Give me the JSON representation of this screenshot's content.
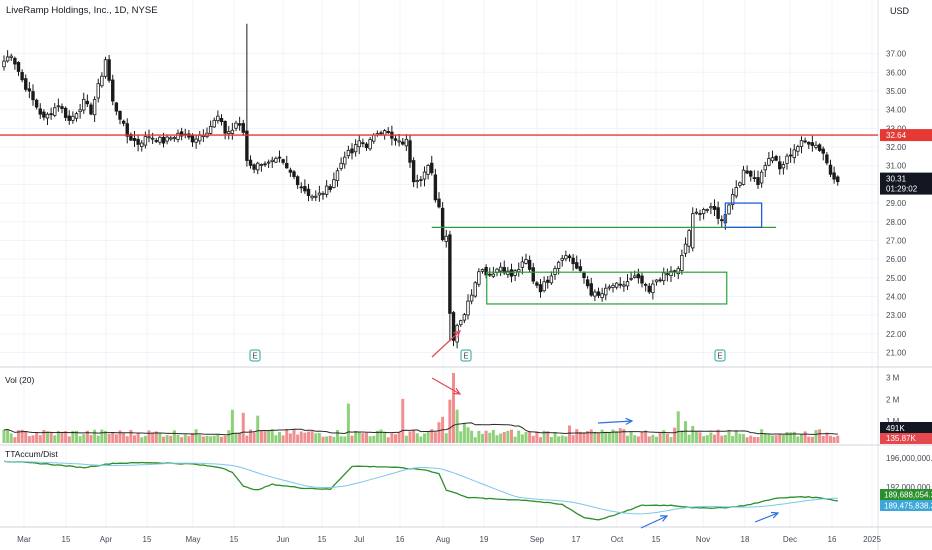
{
  "header": {
    "title": "LiveRamp Holdings, Inc., 1D, NYSE",
    "currency": "USD"
  },
  "colors": {
    "up": "#6ab04c",
    "down": "#1b1b1b",
    "vol_up": "#8fd17a",
    "vol_down": "#ef8f8f",
    "resistance": "#e53935",
    "support": "#2e9e3a",
    "range_box": "#2e9e3a",
    "flag_box": "#1e5fd6",
    "acc_line": "#2b8f2b",
    "acc_ma": "#7cc7e8",
    "earnings": "#26a69a"
  },
  "price_axis": {
    "range": [
      20.6,
      38.8
    ],
    "ticks": [
      "21.00",
      "22.00",
      "23.00",
      "24.00",
      "25.00",
      "26.00",
      "27.00",
      "28.00",
      "29.00",
      "30.00",
      "31.00",
      "32.00",
      "33.00",
      "34.00",
      "35.00",
      "36.00",
      "37.00"
    ]
  },
  "time_axis": {
    "labels": [
      "Mar",
      "15",
      "Apr",
      "15",
      "May",
      "15",
      "Jun",
      "15",
      "Jul",
      "16",
      "Aug",
      "19",
      "Sep",
      "17",
      "Oct",
      "15",
      "Nov",
      "18",
      "Dec",
      "16",
      "2025"
    ]
  },
  "markers": {
    "resistance_value": "32.64",
    "last_price": "30.31",
    "countdown": "01:29:02",
    "volume_label": "Vol (20)",
    "volume_ticks": [
      "3 M",
      "2 M",
      "1 M"
    ],
    "volume_last": "491K",
    "volume_ma": "135.87K",
    "acc_label": "TTAccum/Dist",
    "acc_tick": "196,000,000.00",
    "acc_tick2": "192,000,000.00",
    "acc_value": "189,688,054.30",
    "acc_ma_value": "189,475,838.35",
    "earnings_letter": "E"
  },
  "chart_data": {
    "type": "candlestick",
    "title": "LiveRamp Holdings, Inc., 1D, NYSE",
    "x": "trading days, 28 Feb 2024 – 27 Dec 2024",
    "ylim": [
      20.6,
      38.8
    ],
    "grid": true,
    "levels": {
      "resistance": 32.64,
      "support": 27.7,
      "last": 30.31
    },
    "range_box": {
      "low": 23.6,
      "high": 25.3
    },
    "flag_box": {
      "low": 27.7,
      "high": 29.0
    },
    "earnings_marks": [
      "May 22",
      "Aug 07",
      "Nov 06"
    ],
    "price_anchors": [
      [
        0,
        36.6
      ],
      [
        2,
        37.0
      ],
      [
        5,
        35.6
      ],
      [
        8,
        34.5
      ],
      [
        11,
        33.5
      ],
      [
        15,
        34.3
      ],
      [
        18,
        33.4
      ],
      [
        22,
        34.4
      ],
      [
        24,
        33.9
      ],
      [
        27,
        35.9
      ],
      [
        28,
        36.7
      ],
      [
        30,
        34.4
      ],
      [
        32,
        33.6
      ],
      [
        34,
        32.6
      ],
      [
        37,
        32.2
      ],
      [
        40,
        32.6
      ],
      [
        44,
        32.3
      ],
      [
        48,
        32.7
      ],
      [
        52,
        32.4
      ],
      [
        56,
        32.9
      ],
      [
        59,
        33.6
      ],
      [
        61,
        32.8
      ],
      [
        63,
        32.9
      ],
      [
        64,
        33.3
      ],
      [
        66,
        32.8
      ],
      [
        67,
        31.3
      ],
      [
        69,
        30.9
      ],
      [
        71,
        31.2
      ],
      [
        73,
        31.1
      ],
      [
        76,
        31.3
      ],
      [
        78,
        30.8
      ],
      [
        80,
        30.4
      ],
      [
        82,
        29.9
      ],
      [
        84,
        29.5
      ],
      [
        86,
        29.3
      ],
      [
        88,
        29.6
      ],
      [
        90,
        29.9
      ],
      [
        92,
        30.7
      ],
      [
        94,
        31.6
      ],
      [
        96,
        31.7
      ],
      [
        98,
        32.3
      ],
      [
        100,
        32.1
      ],
      [
        102,
        32.5
      ],
      [
        103,
        32.8
      ],
      [
        105,
        33.0
      ],
      [
        107,
        32.4
      ],
      [
        109,
        32.2
      ],
      [
        111,
        32.3
      ],
      [
        113,
        30.3
      ],
      [
        115,
        30.4
      ],
      [
        117,
        30.9
      ],
      [
        118,
        30.5
      ],
      [
        119,
        29.3
      ],
      [
        120,
        28.8
      ],
      [
        121,
        27.2
      ],
      [
        122,
        27.3
      ],
      [
        123,
        23.1
      ],
      [
        124,
        21.8
      ],
      [
        125,
        22.5
      ],
      [
        127,
        23.1
      ],
      [
        129,
        24.2
      ],
      [
        131,
        25.5
      ],
      [
        134,
        25.2
      ],
      [
        137,
        25.6
      ],
      [
        140,
        25.1
      ],
      [
        142,
        25.5
      ],
      [
        144,
        25.9
      ],
      [
        146,
        24.9
      ],
      [
        148,
        24.4
      ],
      [
        150,
        24.9
      ],
      [
        152,
        25.6
      ],
      [
        154,
        26.2
      ],
      [
        156,
        26.1
      ],
      [
        158,
        25.5
      ],
      [
        160,
        25.0
      ],
      [
        162,
        24.2
      ],
      [
        164,
        24.0
      ],
      [
        166,
        24.3
      ],
      [
        168,
        24.6
      ],
      [
        170,
        24.5
      ],
      [
        172,
        24.8
      ],
      [
        174,
        25.0
      ],
      [
        176,
        24.7
      ],
      [
        178,
        24.2
      ],
      [
        180,
        24.9
      ],
      [
        182,
        25.1
      ],
      [
        184,
        25.3
      ],
      [
        186,
        25.4
      ],
      [
        188,
        26.8
      ],
      [
        190,
        28.3
      ],
      [
        193,
        28.7
      ],
      [
        196,
        28.6
      ],
      [
        198,
        28.0
      ],
      [
        200,
        29.0
      ],
      [
        202,
        29.9
      ],
      [
        204,
        30.6
      ],
      [
        206,
        30.6
      ],
      [
        208,
        30.1
      ],
      [
        210,
        31.1
      ],
      [
        212,
        31.5
      ],
      [
        214,
        30.8
      ],
      [
        216,
        31.4
      ],
      [
        218,
        31.9
      ],
      [
        220,
        32.2
      ],
      [
        222,
        32.3
      ],
      [
        224,
        32.1
      ],
      [
        226,
        31.7
      ],
      [
        228,
        30.6
      ],
      [
        230,
        30.3
      ]
    ],
    "accum_dist_ylim": [
      186500000,
      197000000
    ],
    "accum_dist_anchors": [
      [
        0,
        195.6
      ],
      [
        12,
        195.2
      ],
      [
        22,
        194.7
      ],
      [
        30,
        195.3
      ],
      [
        40,
        195.4
      ],
      [
        52,
        195.2
      ],
      [
        60,
        194.7
      ],
      [
        63,
        194.1
      ],
      [
        66,
        192.1
      ],
      [
        70,
        191.6
      ],
      [
        74,
        192.4
      ],
      [
        82,
        191.9
      ],
      [
        90,
        191.7
      ],
      [
        96,
        194.9
      ],
      [
        106,
        194.8
      ],
      [
        116,
        194.4
      ],
      [
        120,
        193.9
      ],
      [
        122,
        191.6
      ],
      [
        128,
        190.6
      ],
      [
        134,
        190.4
      ],
      [
        144,
        190.2
      ],
      [
        154,
        189.6
      ],
      [
        160,
        187.8
      ],
      [
        164,
        187.5
      ],
      [
        170,
        188.4
      ],
      [
        176,
        189.5
      ],
      [
        184,
        189.5
      ],
      [
        192,
        189.1
      ],
      [
        200,
        189.2
      ],
      [
        206,
        189.6
      ],
      [
        212,
        190.4
      ],
      [
        220,
        190.7
      ],
      [
        226,
        190.5
      ],
      [
        230,
        190.1
      ]
    ],
    "volume_ylim": [
      0,
      3200000
    ],
    "volume_spikes": [
      [
        63,
        1520000
      ],
      [
        66,
        1380000
      ],
      [
        70,
        1250000
      ],
      [
        95,
        1800000
      ],
      [
        110,
        2020000
      ],
      [
        120,
        950000
      ],
      [
        121,
        1200000
      ],
      [
        123,
        1980000
      ],
      [
        124,
        3200000
      ],
      [
        125,
        1520000
      ],
      [
        127,
        900000
      ],
      [
        128,
        720000
      ],
      [
        156,
        800000
      ],
      [
        162,
        620000
      ],
      [
        170,
        680000
      ],
      [
        185,
        700000
      ],
      [
        186,
        1450000
      ],
      [
        188,
        1000000
      ],
      [
        190,
        780000
      ],
      [
        200,
        600000
      ]
    ]
  }
}
